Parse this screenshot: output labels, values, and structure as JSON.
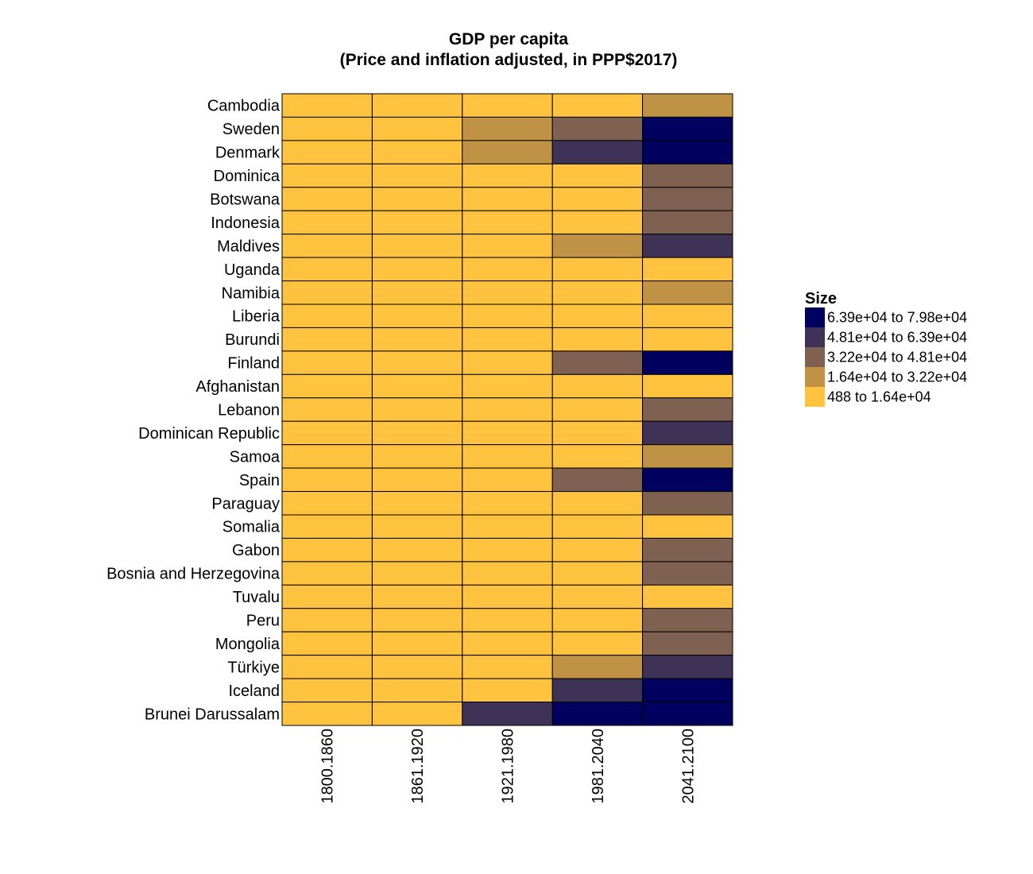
{
  "chart_data": {
    "type": "heatmap",
    "title": "GDP per capita",
    "subtitle": "(Price and inflation adjusted, in PPP$2017)",
    "x_categories": [
      "1800.1860",
      "1861.1920",
      "1921.1980",
      "1981.2040",
      "2041.2100"
    ],
    "y_categories": [
      "Cambodia",
      "Sweden",
      "Denmark",
      "Dominica",
      "Botswana",
      "Indonesia",
      "Maldives",
      "Uganda",
      "Namibia",
      "Liberia",
      "Burundi",
      "Finland",
      "Afghanistan",
      "Lebanon",
      "Dominican Republic",
      "Samoa",
      "Spain",
      "Paraguay",
      "Somalia",
      "Gabon",
      "Bosnia and Herzegovina",
      "Tuvalu",
      "Peru",
      "Mongolia",
      "Türkiye",
      "Iceland",
      "Brunei Darussalam"
    ],
    "values_bin_index": [
      [
        0,
        0,
        0,
        0,
        1
      ],
      [
        0,
        0,
        1,
        2,
        4
      ],
      [
        0,
        0,
        1,
        3,
        4
      ],
      [
        0,
        0,
        0,
        0,
        2
      ],
      [
        0,
        0,
        0,
        0,
        2
      ],
      [
        0,
        0,
        0,
        0,
        2
      ],
      [
        0,
        0,
        0,
        1,
        3
      ],
      [
        0,
        0,
        0,
        0,
        0
      ],
      [
        0,
        0,
        0,
        0,
        1
      ],
      [
        0,
        0,
        0,
        0,
        0
      ],
      [
        0,
        0,
        0,
        0,
        0
      ],
      [
        0,
        0,
        0,
        2,
        4
      ],
      [
        0,
        0,
        0,
        0,
        0
      ],
      [
        0,
        0,
        0,
        0,
        2
      ],
      [
        0,
        0,
        0,
        0,
        3
      ],
      [
        0,
        0,
        0,
        0,
        1
      ],
      [
        0,
        0,
        0,
        2,
        4
      ],
      [
        0,
        0,
        0,
        0,
        2
      ],
      [
        0,
        0,
        0,
        0,
        0
      ],
      [
        0,
        0,
        0,
        0,
        2
      ],
      [
        0,
        0,
        0,
        0,
        2
      ],
      [
        0,
        0,
        0,
        0,
        0
      ],
      [
        0,
        0,
        0,
        0,
        2
      ],
      [
        0,
        0,
        0,
        0,
        2
      ],
      [
        0,
        0,
        0,
        1,
        3
      ],
      [
        0,
        0,
        0,
        3,
        4
      ],
      [
        0,
        0,
        3,
        4,
        4
      ]
    ],
    "legend": {
      "title": "Size",
      "placement": "right",
      "bins": [
        {
          "label": "488 to 1.64e+04",
          "color": "#FFC33F"
        },
        {
          "label": "1.64e+04 to 3.22e+04",
          "color": "#BF9246"
        },
        {
          "label": "3.22e+04 to 4.81e+04",
          "color": "#7E6150"
        },
        {
          "label": "4.81e+04 to 6.39e+04",
          "color": "#3E3257"
        },
        {
          "label": "6.39e+04 to 7.98e+04",
          "color": "#00005E"
        }
      ]
    },
    "grid": false
  }
}
